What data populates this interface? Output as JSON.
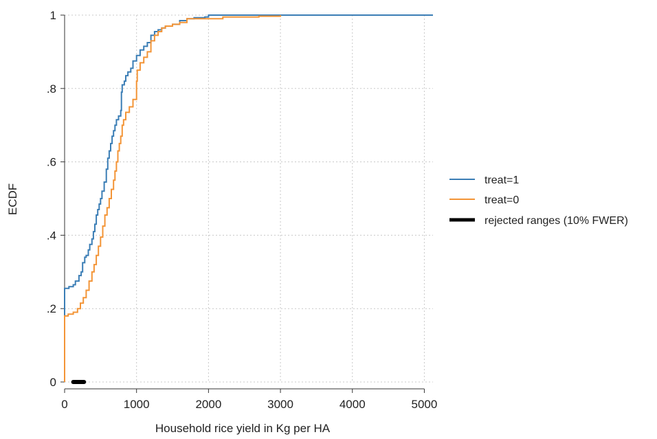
{
  "chart_data": {
    "type": "line",
    "title": "",
    "xlabel": "Household rice yield in Kg per HA",
    "ylabel": "ECDF",
    "xlim": [
      0,
      5120
    ],
    "ylim": [
      0,
      1
    ],
    "xticks": [
      0,
      1000,
      2000,
      3000,
      4000,
      5000
    ],
    "xtick_labels": [
      "0",
      "1000",
      "2000",
      "3000",
      "4000",
      "5000"
    ],
    "yticks": [
      0,
      0.2,
      0.4,
      0.6,
      0.8,
      1
    ],
    "ytick_labels": [
      "0",
      ".2",
      ".4",
      ".6",
      ".8",
      "1"
    ],
    "grid": true,
    "legend_position": "right",
    "series": [
      {
        "name": "treat=1",
        "color": "#3a7db5",
        "step": true,
        "points": [
          [
            0,
            0
          ],
          [
            0,
            0.255
          ],
          [
            60,
            0.26
          ],
          [
            120,
            0.265
          ],
          [
            150,
            0.275
          ],
          [
            200,
            0.29
          ],
          [
            230,
            0.3
          ],
          [
            250,
            0.325
          ],
          [
            280,
            0.34
          ],
          [
            300,
            0.345
          ],
          [
            330,
            0.36
          ],
          [
            350,
            0.375
          ],
          [
            380,
            0.39
          ],
          [
            400,
            0.41
          ],
          [
            420,
            0.43
          ],
          [
            440,
            0.455
          ],
          [
            460,
            0.47
          ],
          [
            480,
            0.485
          ],
          [
            500,
            0.5
          ],
          [
            520,
            0.52
          ],
          [
            550,
            0.545
          ],
          [
            580,
            0.58
          ],
          [
            600,
            0.61
          ],
          [
            620,
            0.63
          ],
          [
            640,
            0.65
          ],
          [
            660,
            0.67
          ],
          [
            680,
            0.685
          ],
          [
            700,
            0.7
          ],
          [
            720,
            0.715
          ],
          [
            750,
            0.725
          ],
          [
            780,
            0.74
          ],
          [
            790,
            0.79
          ],
          [
            800,
            0.81
          ],
          [
            830,
            0.82
          ],
          [
            850,
            0.835
          ],
          [
            880,
            0.845
          ],
          [
            920,
            0.855
          ],
          [
            950,
            0.875
          ],
          [
            1000,
            0.89
          ],
          [
            1050,
            0.905
          ],
          [
            1100,
            0.915
          ],
          [
            1150,
            0.925
          ],
          [
            1200,
            0.945
          ],
          [
            1250,
            0.955
          ],
          [
            1300,
            0.96
          ],
          [
            1350,
            0.965
          ],
          [
            1400,
            0.97
          ],
          [
            1500,
            0.975
          ],
          [
            1600,
            0.985
          ],
          [
            1700,
            0.99
          ],
          [
            1800,
            0.993
          ],
          [
            1950,
            0.995
          ],
          [
            2000,
            1
          ],
          [
            5120,
            1
          ]
        ]
      },
      {
        "name": "treat=0",
        "color": "#f39436",
        "step": true,
        "points": [
          [
            0,
            0
          ],
          [
            0,
            0.18
          ],
          [
            50,
            0.185
          ],
          [
            120,
            0.19
          ],
          [
            180,
            0.2
          ],
          [
            220,
            0.215
          ],
          [
            260,
            0.23
          ],
          [
            300,
            0.25
          ],
          [
            340,
            0.275
          ],
          [
            380,
            0.3
          ],
          [
            410,
            0.32
          ],
          [
            440,
            0.345
          ],
          [
            470,
            0.37
          ],
          [
            500,
            0.395
          ],
          [
            530,
            0.425
          ],
          [
            560,
            0.455
          ],
          [
            590,
            0.475
          ],
          [
            620,
            0.5
          ],
          [
            650,
            0.525
          ],
          [
            680,
            0.55
          ],
          [
            700,
            0.575
          ],
          [
            720,
            0.6
          ],
          [
            740,
            0.63
          ],
          [
            760,
            0.65
          ],
          [
            780,
            0.67
          ],
          [
            800,
            0.7
          ],
          [
            820,
            0.715
          ],
          [
            850,
            0.735
          ],
          [
            900,
            0.75
          ],
          [
            950,
            0.77
          ],
          [
            1000,
            0.82
          ],
          [
            1010,
            0.85
          ],
          [
            1050,
            0.87
          ],
          [
            1100,
            0.885
          ],
          [
            1150,
            0.9
          ],
          [
            1200,
            0.93
          ],
          [
            1250,
            0.945
          ],
          [
            1300,
            0.955
          ],
          [
            1350,
            0.965
          ],
          [
            1400,
            0.97
          ],
          [
            1500,
            0.975
          ],
          [
            1600,
            0.98
          ],
          [
            1700,
            0.99
          ],
          [
            2000,
            0.99
          ],
          [
            2200,
            0.995
          ],
          [
            2700,
            0.997
          ],
          [
            3000,
            1
          ],
          [
            3000,
            1
          ]
        ]
      }
    ],
    "rejected_ranges": {
      "name": "rejected ranges (10% FWER)",
      "color": "#000000",
      "y": 0,
      "ranges": [
        [
          120,
          270
        ]
      ]
    }
  }
}
